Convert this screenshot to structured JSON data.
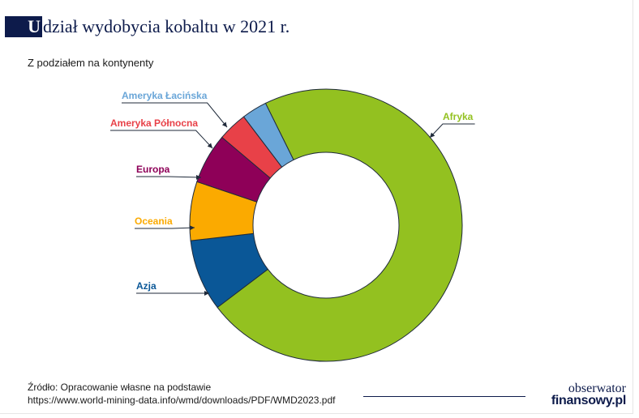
{
  "title": {
    "first_letter": "U",
    "rest": "dział wydobycia kobaltu w 2021 r."
  },
  "subtitle": "Z podziałem na kontynenty",
  "chart_data": {
    "type": "pie",
    "variant": "donut",
    "title": "Udział wydobycia kobaltu w 2021 r.",
    "subtitle": "Z podziałem na kontynenty",
    "slices": [
      {
        "label": "Afryka",
        "value": 72.0,
        "color": "#93c120"
      },
      {
        "label": "Azja",
        "value": 8.5,
        "color": "#0a5797"
      },
      {
        "label": "Oceania",
        "value": 7.0,
        "color": "#fbaa00"
      },
      {
        "label": "Europa",
        "value": 6.0,
        "color": "#8e0058"
      },
      {
        "label": "Ameryka Północna",
        "value": 3.5,
        "color": "#e84148"
      },
      {
        "label": "Ameryka Łacińska",
        "value": 3.0,
        "color": "#6aa6d8"
      }
    ],
    "legend": "outside labels with leader lines"
  },
  "source": {
    "line1": "Źródło: Opracowanie własne na podstawie",
    "line2": "https://www.world-mining-data.info/wmd/downloads/PDF/WMD2023.pdf"
  },
  "logo": {
    "line1": "obserwator",
    "line2": "finansowy.pl"
  }
}
